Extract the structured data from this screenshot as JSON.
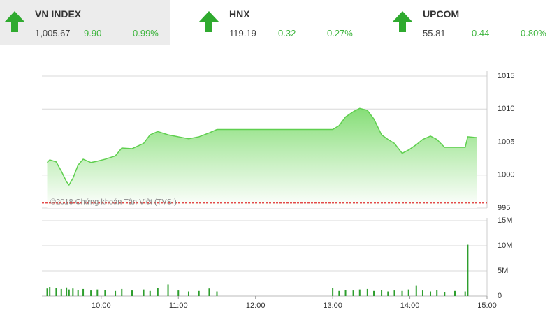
{
  "indices": [
    {
      "name": "VN INDEX",
      "value": "1,005.67",
      "change": "9.90",
      "percent": "0.99%"
    },
    {
      "name": "HNX",
      "value": "119.19",
      "change": "0.32",
      "percent": "0.27%"
    },
    {
      "name": "UPCOM",
      "value": "55.81",
      "change": "0.44",
      "percent": "0.80%"
    }
  ],
  "chart_data": {
    "type": "area",
    "watermark": "©2018 Chứng khoán Tân Việt (TVSI)",
    "x": [
      "09:18",
      "09:20",
      "09:25",
      "09:29",
      "09:33",
      "09:35",
      "09:38",
      "09:42",
      "09:46",
      "09:52",
      "09:57",
      "10:03",
      "10:11",
      "10:16",
      "10:24",
      "10:33",
      "10:38",
      "10:44",
      "10:52",
      "11:00",
      "11:08",
      "11:16",
      "11:24",
      "11:30",
      "13:00",
      "13:05",
      "13:10",
      "13:16",
      "13:21",
      "13:27",
      "13:32",
      "13:38",
      "13:43",
      "13:48",
      "13:54",
      "13:59",
      "14:05",
      "14:10",
      "14:16",
      "14:21",
      "14:27",
      "14:35",
      "14:43",
      "14:45",
      "14:52"
    ],
    "xlim": [
      "09:15",
      "15:00"
    ],
    "xticks": [
      "10:00",
      "11:00",
      "12:00",
      "13:00",
      "14:00",
      "15:00"
    ],
    "ylim": [
      995,
      1015
    ],
    "yticks": [
      995,
      1000,
      1005,
      1010,
      1015
    ],
    "y2lim": [
      0,
      15000000
    ],
    "y2ticks": [
      0,
      {
        "value": 5000000,
        "label": "5M"
      },
      {
        "value": 10000000,
        "label": "10M"
      },
      {
        "value": 15000000,
        "label": "15M"
      }
    ],
    "reference": 995.77,
    "reference_color": "#e03030",
    "grid": true,
    "series": [
      {
        "color": "#5fcf4f",
        "values": [
          1001.9,
          1002.3,
          1002.0,
          1000.6,
          999.0,
          998.5,
          999.5,
          1001.5,
          1002.4,
          1001.9,
          1002.1,
          1002.4,
          1002.9,
          1004.1,
          1004.0,
          1004.8,
          1006.1,
          1006.6,
          1006.1,
          1005.8,
          1005.5,
          1005.8,
          1006.4,
          1006.9,
          1006.9,
          1007.5,
          1008.8,
          1009.6,
          1010.1,
          1009.8,
          1008.5,
          1006.1,
          1005.4,
          1004.8,
          1003.3,
          1003.8,
          1004.6,
          1005.4,
          1005.9,
          1005.4,
          1004.2,
          1004.2,
          1004.2,
          1005.8,
          1005.67
        ]
      },
      {
        "type": "bar",
        "axis": "y2",
        "color": "#2e9e2e",
        "values": [
          1500000,
          1800000,
          1600000,
          1400000,
          1700000,
          1300000,
          1500000,
          1200000,
          1400000,
          1100000,
          1300000,
          1200000,
          1000000,
          1400000,
          1100000,
          1300000,
          1000000,
          1600000,
          2300000,
          1100000,
          900000,
          1000000,
          1500000,
          900000,
          1600000,
          1000000,
          1200000,
          1100000,
          1300000,
          1400000,
          1000000,
          1200000,
          900000,
          1100000,
          1000000,
          1300000,
          2000000,
          1100000,
          900000,
          1200000,
          800000,
          1000000,
          900000,
          10200000,
          null
        ]
      }
    ]
  }
}
